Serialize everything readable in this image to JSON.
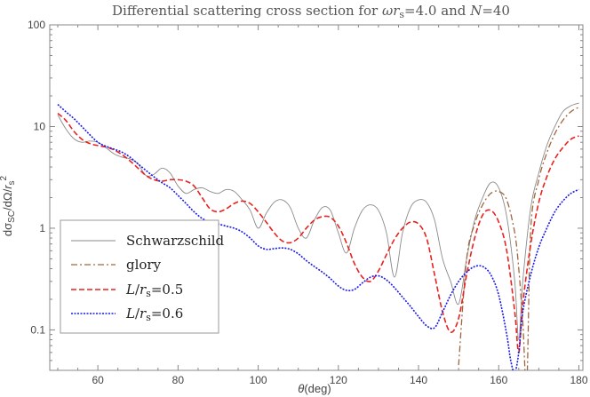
{
  "chart_data": {
    "type": "line",
    "title": "Differential scattering cross section for ωr_s=4.0 and N=40",
    "title_parts": [
      "Differential scattering cross section for ",
      "ω",
      "r",
      "s",
      "=4.0 and ",
      "N",
      "=40"
    ],
    "xlabel": "θ(deg)",
    "xlabel_parts": [
      "θ",
      "(deg)"
    ],
    "ylabel": "dσ_SC/dΩ/r_s^2",
    "ylabel_parts": [
      "dσ",
      "SC",
      "/dΩ/",
      "r",
      "s",
      "2"
    ],
    "xlim": [
      48,
      181
    ],
    "ylim": [
      0.04,
      100
    ],
    "yscale": "log",
    "xticks": [
      60,
      80,
      100,
      120,
      140,
      160,
      180
    ],
    "yticks": [
      100,
      10,
      1,
      0.1
    ],
    "ytick_labels": [
      "100",
      "10",
      "1",
      "0.1"
    ],
    "legend": {
      "position": "bottom-left"
    },
    "series": [
      {
        "name": "Schwarzschild",
        "label_parts": [
          "Schwarzschild"
        ],
        "color": "#8a8a8a",
        "style": "solid",
        "points": [
          [
            50,
            13.0
          ],
          [
            52,
            9.5
          ],
          [
            54,
            7.6
          ],
          [
            56,
            7.0
          ],
          [
            58,
            7.2
          ],
          [
            60,
            7.0
          ],
          [
            62,
            6.2
          ],
          [
            64,
            5.4
          ],
          [
            66,
            5.0
          ],
          [
            68,
            4.8
          ],
          [
            70,
            4.3
          ],
          [
            72,
            3.3
          ],
          [
            74,
            3.4
          ],
          [
            76,
            3.9
          ],
          [
            78,
            3.5
          ],
          [
            80,
            2.6
          ],
          [
            82,
            2.2
          ],
          [
            84,
            2.4
          ],
          [
            86,
            2.5
          ],
          [
            88,
            2.3
          ],
          [
            90,
            2.2
          ],
          [
            92,
            2.4
          ],
          [
            94,
            2.3
          ],
          [
            96,
            1.9
          ],
          [
            98,
            1.5
          ],
          [
            100,
            1.0
          ],
          [
            102,
            1.4
          ],
          [
            104,
            1.8
          ],
          [
            106,
            1.9
          ],
          [
            108,
            1.6
          ],
          [
            110,
            1.0
          ],
          [
            112,
            0.8
          ],
          [
            114,
            1.2
          ],
          [
            116,
            1.6
          ],
          [
            118,
            1.5
          ],
          [
            120,
            0.9
          ],
          [
            122,
            0.57
          ],
          [
            124,
            1.0
          ],
          [
            126,
            1.5
          ],
          [
            128,
            1.7
          ],
          [
            130,
            1.5
          ],
          [
            132,
            0.9
          ],
          [
            134,
            0.33
          ],
          [
            136,
            0.9
          ],
          [
            138,
            1.6
          ],
          [
            140,
            1.9
          ],
          [
            142,
            1.8
          ],
          [
            144,
            1.2
          ],
          [
            146,
            0.5
          ],
          [
            148,
            0.3
          ],
          [
            150,
            0.18
          ],
          [
            152,
            0.5
          ],
          [
            154,
            1.2
          ],
          [
            156,
            2.0
          ],
          [
            158,
            2.8
          ],
          [
            160,
            2.5
          ],
          [
            162,
            1.3
          ],
          [
            164,
            0.3
          ],
          [
            165,
            0.08
          ],
          [
            166,
            0.3
          ],
          [
            168,
            1.6
          ],
          [
            170,
            3.5
          ],
          [
            172,
            6.5
          ],
          [
            174,
            10.0
          ],
          [
            176,
            14.0
          ],
          [
            178,
            16.0
          ],
          [
            180,
            17.0
          ]
        ]
      },
      {
        "name": "glory",
        "label_parts": [
          "glory"
        ],
        "color": "#a0673d",
        "style": "dashdot",
        "points": [
          [
            150,
            0.045
          ],
          [
            152,
            0.5
          ],
          [
            154,
            1.1
          ],
          [
            156,
            1.7
          ],
          [
            158,
            2.2
          ],
          [
            160,
            2.3
          ],
          [
            162,
            1.9
          ],
          [
            164,
            0.9
          ],
          [
            165,
            0.4
          ],
          [
            166,
            0.12
          ],
          [
            167,
            0.03
          ],
          [
            168,
            1.0
          ],
          [
            170,
            3.0
          ],
          [
            172,
            5.5
          ],
          [
            174,
            8.5
          ],
          [
            176,
            11.5
          ],
          [
            178,
            14.0
          ],
          [
            180,
            15.5
          ]
        ]
      },
      {
        "name": "L/r_s=0.5",
        "label_parts": [
          "L",
          "/",
          "r",
          "s",
          "=0.5"
        ],
        "color": "#e8221f",
        "style": "dashed",
        "points": [
          [
            50,
            13.5
          ],
          [
            52,
            11.5
          ],
          [
            54,
            9.0
          ],
          [
            56,
            7.5
          ],
          [
            58,
            6.8
          ],
          [
            60,
            6.5
          ],
          [
            62,
            6.3
          ],
          [
            64,
            5.9
          ],
          [
            66,
            5.3
          ],
          [
            68,
            4.6
          ],
          [
            70,
            3.9
          ],
          [
            72,
            3.3
          ],
          [
            74,
            3.0
          ],
          [
            76,
            2.9
          ],
          [
            78,
            3.0
          ],
          [
            80,
            3.0
          ],
          [
            82,
            2.9
          ],
          [
            84,
            2.6
          ],
          [
            86,
            2.0
          ],
          [
            88,
            1.55
          ],
          [
            90,
            1.45
          ],
          [
            92,
            1.55
          ],
          [
            94,
            1.75
          ],
          [
            96,
            1.85
          ],
          [
            98,
            1.75
          ],
          [
            100,
            1.45
          ],
          [
            102,
            1.15
          ],
          [
            104,
            0.9
          ],
          [
            106,
            0.75
          ],
          [
            108,
            0.72
          ],
          [
            110,
            0.8
          ],
          [
            112,
            1.0
          ],
          [
            114,
            1.2
          ],
          [
            116,
            1.3
          ],
          [
            118,
            1.28
          ],
          [
            120,
            1.05
          ],
          [
            122,
            0.72
          ],
          [
            124,
            0.45
          ],
          [
            126,
            0.33
          ],
          [
            128,
            0.3
          ],
          [
            130,
            0.38
          ],
          [
            132,
            0.55
          ],
          [
            134,
            0.78
          ],
          [
            136,
            1.0
          ],
          [
            138,
            1.15
          ],
          [
            140,
            1.1
          ],
          [
            142,
            0.8
          ],
          [
            144,
            0.35
          ],
          [
            146,
            0.15
          ],
          [
            148,
            0.095
          ],
          [
            150,
            0.13
          ],
          [
            152,
            0.35
          ],
          [
            154,
            0.8
          ],
          [
            156,
            1.35
          ],
          [
            158,
            1.5
          ],
          [
            160,
            1.15
          ],
          [
            162,
            0.6
          ],
          [
            164,
            0.15
          ],
          [
            165,
            0.06
          ],
          [
            166,
            0.18
          ],
          [
            168,
            0.7
          ],
          [
            170,
            1.8
          ],
          [
            172,
            3.2
          ],
          [
            174,
            4.8
          ],
          [
            176,
            6.2
          ],
          [
            178,
            7.5
          ],
          [
            180,
            8.1
          ]
        ]
      },
      {
        "name": "L/r_s=0.6",
        "label_parts": [
          "L",
          "/",
          "r",
          "s",
          "=0.6"
        ],
        "color": "#1a1aeb",
        "style": "dotted",
        "points": [
          [
            50,
            16.5
          ],
          [
            52,
            14.0
          ],
          [
            54,
            12.0
          ],
          [
            56,
            10.0
          ],
          [
            58,
            8.3
          ],
          [
            60,
            7.0
          ],
          [
            62,
            6.4
          ],
          [
            64,
            6.0
          ],
          [
            66,
            5.6
          ],
          [
            68,
            5.0
          ],
          [
            70,
            4.3
          ],
          [
            72,
            3.7
          ],
          [
            74,
            3.2
          ],
          [
            76,
            2.8
          ],
          [
            78,
            2.5
          ],
          [
            80,
            2.1
          ],
          [
            82,
            1.75
          ],
          [
            84,
            1.45
          ],
          [
            86,
            1.25
          ],
          [
            88,
            1.15
          ],
          [
            90,
            1.1
          ],
          [
            92,
            1.05
          ],
          [
            94,
            1.0
          ],
          [
            96,
            0.92
          ],
          [
            98,
            0.8
          ],
          [
            100,
            0.67
          ],
          [
            102,
            0.62
          ],
          [
            104,
            0.63
          ],
          [
            106,
            0.64
          ],
          [
            108,
            0.62
          ],
          [
            110,
            0.56
          ],
          [
            112,
            0.48
          ],
          [
            114,
            0.42
          ],
          [
            116,
            0.37
          ],
          [
            118,
            0.32
          ],
          [
            120,
            0.27
          ],
          [
            122,
            0.245
          ],
          [
            124,
            0.25
          ],
          [
            126,
            0.29
          ],
          [
            128,
            0.33
          ],
          [
            130,
            0.34
          ],
          [
            132,
            0.31
          ],
          [
            134,
            0.26
          ],
          [
            136,
            0.21
          ],
          [
            138,
            0.17
          ],
          [
            140,
            0.135
          ],
          [
            142,
            0.11
          ],
          [
            144,
            0.105
          ],
          [
            146,
            0.15
          ],
          [
            148,
            0.22
          ],
          [
            150,
            0.3
          ],
          [
            152,
            0.37
          ],
          [
            154,
            0.42
          ],
          [
            156,
            0.42
          ],
          [
            158,
            0.35
          ],
          [
            160,
            0.22
          ],
          [
            162,
            0.09
          ],
          [
            163,
            0.05
          ],
          [
            164,
            0.038
          ],
          [
            165,
            0.06
          ],
          [
            166,
            0.15
          ],
          [
            168,
            0.35
          ],
          [
            170,
            0.65
          ],
          [
            172,
            1.0
          ],
          [
            174,
            1.45
          ],
          [
            176,
            1.85
          ],
          [
            178,
            2.2
          ],
          [
            180,
            2.4
          ]
        ]
      }
    ]
  }
}
